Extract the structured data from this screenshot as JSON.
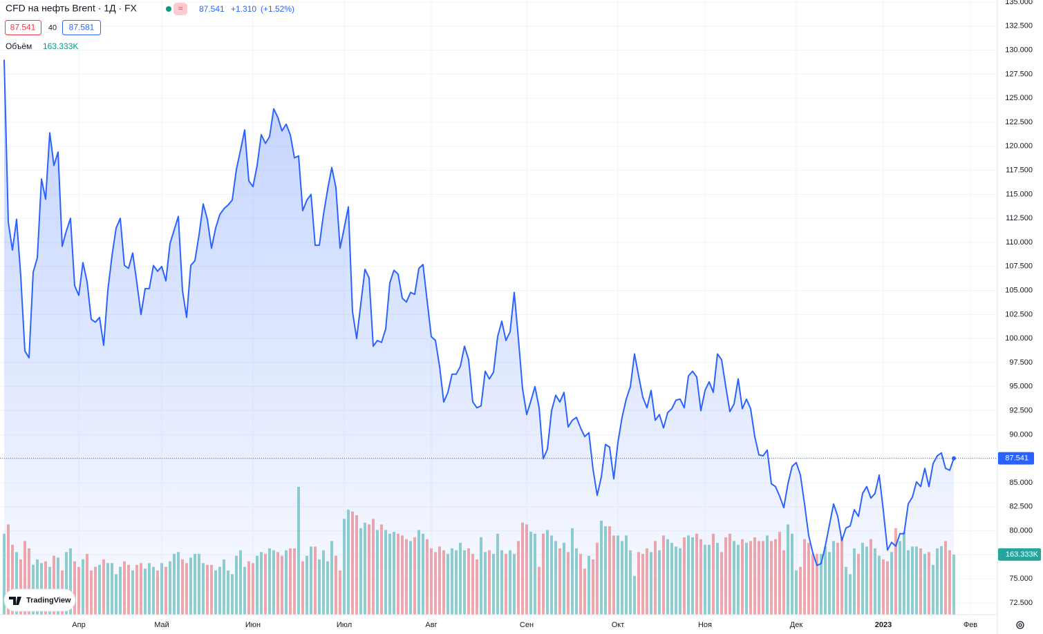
{
  "header": {
    "title": "CFD на нефть Brent · 1Д · FX",
    "change": "+1.310",
    "change_pct": "(+1.52%)",
    "bid": "87.541",
    "spread": "40",
    "ask": "87.581",
    "logo": "TradingView"
  },
  "chart_data": {
    "type": "line",
    "categories": [
      null,
      null,
      null,
      null,
      null,
      null,
      null,
      null,
      null,
      null,
      null,
      null,
      null,
      null,
      null,
      null,
      null,
      null,
      "Апр",
      null,
      null,
      null,
      null,
      null,
      null,
      null,
      null,
      null,
      null,
      null,
      null,
      null,
      null,
      null,
      null,
      null,
      null,
      null,
      "Май",
      null,
      null,
      null,
      null,
      null,
      null,
      null,
      null,
      null,
      null,
      null,
      null,
      null,
      null,
      null,
      null,
      null,
      null,
      null,
      null,
      null,
      "Июн",
      null,
      null,
      null,
      null,
      null,
      null,
      null,
      null,
      null,
      null,
      null,
      null,
      null,
      null,
      null,
      null,
      null,
      null,
      null,
      null,
      null,
      "Июл",
      null,
      null,
      null,
      null,
      null,
      null,
      null,
      null,
      null,
      null,
      null,
      null,
      null,
      null,
      null,
      null,
      null,
      null,
      null,
      null,
      "Авг",
      null,
      null,
      null,
      null,
      null,
      null,
      null,
      null,
      null,
      null,
      null,
      null,
      null,
      null,
      null,
      null,
      null,
      null,
      null,
      null,
      null,
      null,
      "Сен",
      null,
      null,
      null,
      null,
      null,
      null,
      null,
      null,
      null,
      null,
      null,
      null,
      null,
      null,
      null,
      null,
      null,
      null,
      null,
      null,
      null,
      "Окт",
      null,
      null,
      null,
      null,
      null,
      null,
      null,
      null,
      null,
      null,
      null,
      null,
      null,
      null,
      null,
      null,
      null,
      null,
      null,
      null,
      "Ноя",
      null,
      null,
      null,
      null,
      null,
      null,
      null,
      null,
      null,
      null,
      null,
      null,
      null,
      null,
      null,
      null,
      null,
      null,
      null,
      null,
      null,
      "Дек",
      null,
      null,
      null,
      null,
      null,
      null,
      null,
      null,
      null,
      null,
      null,
      null,
      null,
      null,
      null,
      null,
      null,
      null,
      null,
      null,
      "2023",
      null,
      null,
      null,
      null,
      null,
      null,
      null,
      null,
      null,
      null,
      null,
      null,
      null,
      null,
      null,
      null,
      null,
      null,
      null,
      null,
      "Фев",
      null,
      null,
      null,
      null,
      null,
      null
    ],
    "series": [
      {
        "name": "CFD на нефть Brent",
        "color": "#2962ff",
        "values": [
          129.0,
          112.1,
          109.2,
          112.4,
          106.5,
          98.7,
          98.0,
          106.9,
          108.4,
          116.6,
          114.5,
          121.4,
          118.0,
          119.4,
          109.6,
          111.2,
          112.5,
          105.5,
          104.5,
          107.9,
          105.9,
          102.0,
          101.7,
          102.2,
          99.3,
          105.0,
          108.6,
          111.5,
          112.5,
          107.6,
          107.3,
          108.9,
          105.8,
          102.5,
          105.2,
          105.2,
          107.6,
          107.0,
          107.5,
          106.0,
          109.9,
          111.3,
          112.7,
          105.0,
          102.2,
          107.6,
          108.1,
          110.8,
          114.0,
          112.4,
          109.4,
          111.5,
          112.9,
          113.5,
          113.9,
          114.4,
          117.6,
          119.6,
          121.7,
          116.4,
          115.8,
          118.0,
          121.2,
          120.3,
          121.0,
          123.9,
          123.0,
          121.6,
          122.3,
          121.2,
          118.8,
          119.0,
          113.3,
          114.4,
          115.0,
          109.7,
          109.7,
          112.9,
          115.5,
          117.8,
          115.7,
          109.4,
          111.5,
          113.7,
          102.8,
          100.0,
          103.6,
          107.2,
          106.3,
          99.2,
          99.8,
          99.6,
          101.0,
          105.8,
          107.1,
          106.7,
          104.2,
          103.8,
          104.8,
          104.6,
          107.3,
          107.7,
          103.9,
          100.2,
          99.8,
          97.1,
          93.4,
          94.4,
          96.3,
          96.3,
          97.1,
          99.2,
          97.8,
          93.4,
          92.8,
          93.0,
          96.6,
          95.8,
          96.5,
          100.2,
          101.8,
          99.8,
          100.7,
          104.8,
          100.0,
          94.8,
          92.1,
          93.5,
          95.0,
          92.8,
          87.5,
          88.5,
          92.5,
          94.1,
          93.4,
          94.4,
          90.8,
          91.5,
          91.8,
          90.7,
          89.8,
          90.2,
          86.4,
          83.7,
          85.6,
          89.0,
          88.7,
          85.4,
          89.2,
          91.8,
          93.7,
          95.0,
          98.4,
          96.1,
          93.9,
          92.8,
          94.6,
          91.5,
          92.1,
          90.7,
          92.3,
          92.7,
          93.6,
          93.7,
          92.8,
          96.1,
          96.6,
          96.0,
          92.5,
          94.6,
          95.5,
          94.4,
          98.4,
          97.8,
          95.0,
          92.4,
          93.2,
          95.8,
          92.7,
          93.7,
          92.7,
          89.8,
          87.9,
          87.8,
          88.4,
          84.9,
          84.6,
          83.6,
          82.4,
          84.9,
          86.7,
          87.1,
          85.8,
          82.8,
          79.5,
          77.7,
          76.4,
          76.6,
          78.4,
          80.6,
          82.8,
          81.5,
          79.0,
          80.3,
          80.5,
          82.2,
          81.5,
          83.9,
          84.6,
          83.4,
          83.9,
          85.8,
          82.1,
          78.0,
          78.8,
          78.4,
          79.7,
          79.7,
          82.8,
          83.5,
          85.1,
          84.6,
          86.5,
          84.6,
          87.0,
          87.8,
          88.1,
          86.5,
          86.3,
          87.541,
          null,
          null,
          null,
          null,
          null,
          null,
          null,
          null,
          null,
          null
        ]
      }
    ],
    "volume": {
      "name": "Объём",
      "up_color": "#92d2cc",
      "down_color": "#f7a9a7",
      "values": [
        220,
        245,
        190,
        170,
        150,
        200,
        180,
        135,
        150,
        140,
        145,
        130,
        160,
        155,
        120,
        170,
        180,
        145,
        130,
        150,
        165,
        120,
        130,
        135,
        150,
        140,
        140,
        110,
        130,
        145,
        135,
        120,
        135,
        140,
        125,
        140,
        130,
        120,
        140,
        130,
        145,
        165,
        170,
        150,
        140,
        155,
        165,
        165,
        140,
        135,
        135,
        120,
        130,
        150,
        120,
        110,
        160,
        175,
        130,
        145,
        140,
        160,
        170,
        165,
        180,
        175,
        170,
        160,
        175,
        180,
        180,
        347,
        145,
        160,
        185,
        185,
        150,
        175,
        145,
        200,
        160,
        120,
        260,
        285,
        280,
        270,
        235,
        250,
        245,
        260,
        230,
        245,
        230,
        220,
        225,
        220,
        215,
        205,
        200,
        210,
        230,
        220,
        205,
        180,
        170,
        185,
        175,
        165,
        180,
        175,
        195,
        175,
        180,
        165,
        150,
        210,
        170,
        175,
        165,
        220,
        175,
        165,
        175,
        165,
        200,
        250,
        245,
        225,
        220,
        130,
        220,
        230,
        215,
        200,
        180,
        195,
        170,
        235,
        180,
        165,
        125,
        160,
        150,
        195,
        255,
        240,
        240,
        215,
        215,
        200,
        215,
        175,
        105,
        170,
        165,
        180,
        170,
        200,
        175,
        215,
        205,
        195,
        185,
        180,
        210,
        215,
        210,
        220,
        205,
        190,
        190,
        220,
        195,
        170,
        210,
        220,
        200,
        190,
        205,
        195,
        200,
        210,
        200,
        200,
        215,
        200,
        205,
        225,
        175,
        245,
        220,
        120,
        130,
        205,
        195,
        165,
        165,
        165,
        185,
        170,
        200,
        195,
        210,
        130,
        110,
        180,
        165,
        195,
        185,
        205,
        180,
        160,
        150,
        145,
        170,
        235,
        200,
        225,
        175,
        185,
        185,
        180,
        165,
        170,
        135,
        180,
        186,
        200,
        175,
        163.333,
        null,
        null,
        null,
        null,
        null,
        null,
        null,
        null,
        null,
        null
      ],
      "value_labels": [
        null,
        null,
        null,
        null,
        null,
        null,
        null,
        null,
        null,
        null,
        null,
        null,
        null,
        null,
        null,
        null,
        null,
        null,
        null,
        null,
        null,
        null,
        null,
        null,
        null,
        null,
        null,
        null,
        null,
        null,
        null,
        null,
        null,
        null,
        null,
        null,
        null,
        null,
        null,
        null,
        null,
        null,
        null,
        null,
        null,
        null,
        null,
        null,
        null,
        null,
        null,
        null,
        null,
        null,
        null,
        null,
        null,
        null,
        null,
        null,
        null,
        null,
        null,
        null,
        null,
        null,
        null,
        null,
        null,
        null,
        null,
        null,
        null,
        null,
        null,
        null,
        null,
        null,
        null,
        null,
        null,
        null,
        null,
        null,
        null,
        null,
        null,
        null,
        null,
        null,
        null,
        null,
        null,
        null,
        null,
        null,
        null,
        null,
        null,
        null,
        null,
        null,
        null,
        null,
        null,
        null,
        null,
        null,
        null,
        null,
        null,
        null,
        null,
        null,
        null,
        null,
        null,
        null,
        null,
        null,
        null,
        null,
        null,
        null,
        null,
        null,
        null,
        null,
        null,
        null,
        null,
        null,
        null,
        null,
        null,
        null,
        null,
        null,
        null,
        null,
        null,
        null,
        null,
        null,
        null,
        null,
        null,
        null,
        null,
        null,
        null,
        null,
        null,
        null,
        null,
        null,
        null,
        null,
        null,
        null,
        null,
        null,
        null,
        null,
        null,
        null,
        null,
        null,
        null,
        null,
        null,
        null,
        null,
        null,
        null,
        null,
        null,
        null,
        null,
        null,
        null,
        null,
        null,
        null,
        null,
        null,
        null,
        null,
        null,
        null,
        null,
        null,
        null,
        null,
        null,
        null,
        null,
        null,
        null,
        null,
        null,
        null,
        null,
        null,
        null,
        null,
        null,
        null,
        null,
        null,
        null,
        null,
        null,
        null,
        null,
        null,
        null,
        null,
        null,
        null,
        null,
        null,
        null,
        null,
        null,
        null,
        null,
        null,
        null,
        "163.333K",
        null,
        null,
        null,
        null,
        null,
        null,
        null,
        null,
        null,
        null
      ]
    },
    "ylim": [
      72.5,
      135
    ],
    "yticks": [
      {
        "value": 72.5,
        "label": "72.500"
      },
      {
        "value": 75,
        "label": "75.000"
      },
      {
        "value": 77.5,
        "label": "77.500"
      },
      {
        "value": 80,
        "label": "80.000"
      },
      {
        "value": 82.5,
        "label": "82.500"
      },
      {
        "value": 85,
        "label": "85.000"
      },
      {
        "value": 87.5,
        "label": "87.500"
      },
      {
        "value": 90,
        "label": "90.000"
      },
      {
        "value": 92.5,
        "label": "92.500"
      },
      {
        "value": 95,
        "label": "95.000"
      },
      {
        "value": 97.5,
        "label": "97.500"
      },
      {
        "value": 100,
        "label": "100.000"
      },
      {
        "value": 102.5,
        "label": "102.500"
      },
      {
        "value": 105,
        "label": "105.000"
      },
      {
        "value": 107.5,
        "label": "107.500"
      },
      {
        "value": 110,
        "label": "110.000"
      },
      {
        "value": 112.5,
        "label": "112.500"
      },
      {
        "value": 115,
        "label": "115.000"
      },
      {
        "value": 117.5,
        "label": "117.500"
      },
      {
        "value": 120,
        "label": "120.000"
      },
      {
        "value": 122.5,
        "label": "122.500"
      },
      {
        "value": 125,
        "label": "125.000"
      },
      {
        "value": 127.5,
        "label": "127.500"
      },
      {
        "value": 130,
        "label": "130.000"
      },
      {
        "value": 132.5,
        "label": "132.500"
      },
      {
        "value": 135,
        "label": "135.000"
      }
    ],
    "grid": true
  }
}
